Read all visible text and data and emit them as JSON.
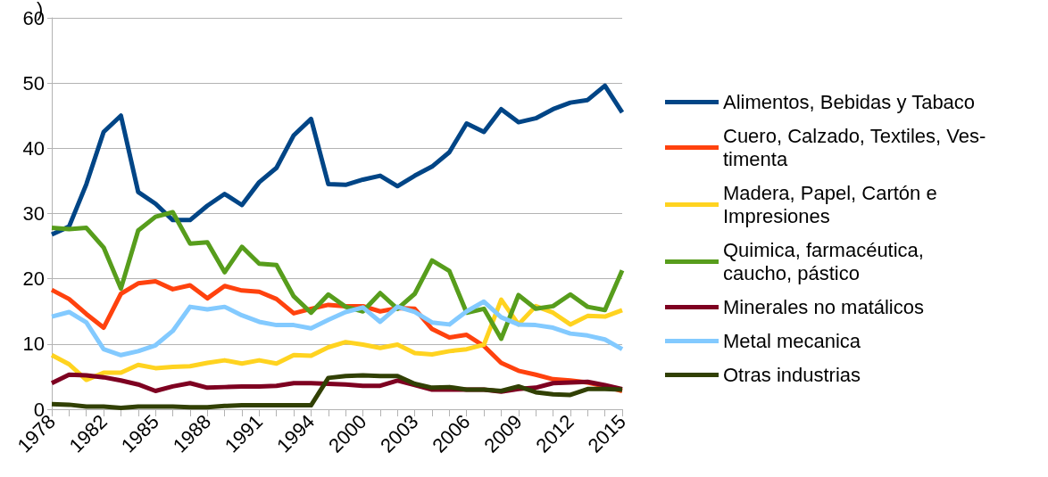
{
  "chart_data": {
    "type": "line",
    "title": ")",
    "categories": [
      "1978",
      null,
      null,
      "1982",
      null,
      null,
      "1985",
      null,
      null,
      "1988",
      null,
      null,
      "1991",
      null,
      null,
      "1994",
      null,
      null,
      "2000",
      null,
      null,
      "2003",
      null,
      null,
      "2006",
      null,
      null,
      "2009",
      null,
      null,
      "2012",
      null,
      null,
      "2015"
    ],
    "ylim": [
      0,
      60
    ],
    "yticks": [
      0,
      10,
      20,
      30,
      40,
      50,
      60
    ],
    "grid": "y",
    "legend": "right",
    "marker": "none",
    "line_style": "solid",
    "series": [
      {
        "name": "Alimentos, Bebidas y Tabaco",
        "color": "#004586",
        "values": [
          26.8,
          28,
          34.5,
          42.5,
          45,
          33.3,
          31.5,
          29,
          29,
          31.2,
          33,
          31.3,
          34.8,
          37,
          42,
          44.5,
          34.5,
          34.4,
          35.2,
          35.8,
          34.2,
          35.8,
          37.2,
          39.4,
          43.8,
          42.5,
          46,
          44,
          44.6,
          46,
          47,
          47.4,
          49.6,
          45.5
        ]
      },
      {
        "name": "Cuero, Calzado, Textiles, Ves-\ntimenta",
        "color": "#ff420e",
        "values": [
          18.3,
          16.9,
          14.6,
          12.5,
          17.7,
          19.3,
          19.6,
          18.4,
          19,
          17,
          18.9,
          18.2,
          18,
          16.9,
          14.7,
          15.4,
          16,
          15.8,
          15.8,
          15,
          15.5,
          15.4,
          12.3,
          11,
          11.4,
          9.7,
          7.1,
          5.9,
          5.3,
          4.6,
          4.4,
          4.1,
          3.5,
          2.8
        ]
      },
      {
        "name": "Madera, Papel, Cartón e\nImpresiones",
        "color": "#ffd320",
        "values": [
          8.3,
          6.9,
          4.5,
          5.6,
          5.6,
          6.8,
          6.3,
          6.5,
          6.6,
          7.1,
          7.5,
          7,
          7.5,
          7,
          8.3,
          8.2,
          9.5,
          10.3,
          9.9,
          9.4,
          9.9,
          8.6,
          8.4,
          8.9,
          9.2,
          9.9,
          16.8,
          13,
          15.8,
          14.8,
          13,
          14.3,
          14.2,
          15.2
        ]
      },
      {
        "name": "Quimica, farmacéutica,\ncaucho, pástico",
        "color": "#579d1c",
        "values": [
          27.8,
          27.6,
          27.8,
          24.8,
          18.5,
          27.4,
          29.5,
          30.2,
          25.4,
          25.6,
          21,
          24.9,
          22.3,
          22.1,
          17.3,
          14.8,
          17.6,
          15.7,
          15,
          17.8,
          15.4,
          17.7,
          22.8,
          21.2,
          14.8,
          15.4,
          10.8,
          17.5,
          15.4,
          15.8,
          17.6,
          15.7,
          15.2,
          21.3
        ]
      },
      {
        "name": "Minerales no matálicos",
        "color": "#7e0021",
        "values": [
          4,
          5.3,
          5.2,
          4.9,
          4.4,
          3.8,
          2.8,
          3.5,
          4,
          3.3,
          3.4,
          3.5,
          3.5,
          3.6,
          4,
          4,
          3.9,
          3.8,
          3.6,
          3.6,
          4.4,
          3.7,
          3,
          3,
          3,
          3,
          2.7,
          3.1,
          3.3,
          4,
          4.1,
          4.2,
          3.7,
          3.1
        ]
      },
      {
        "name": "Metal mecanica",
        "color": "#83caff",
        "values": [
          14.2,
          14.9,
          13.3,
          9.2,
          8.3,
          8.9,
          9.8,
          12,
          15.7,
          15.3,
          15.7,
          14.4,
          13.4,
          12.9,
          12.9,
          12.4,
          13.7,
          14.9,
          15.6,
          13.4,
          15.7,
          14.9,
          13.3,
          13,
          15,
          16.5,
          14.1,
          13,
          12.9,
          12.5,
          11.6,
          11.3,
          10.7,
          9.2
        ]
      },
      {
        "name": "Otras industrias",
        "color": "#314004",
        "values": [
          0.8,
          0.7,
          0.4,
          0.4,
          0.2,
          0.4,
          0.4,
          0.4,
          0.3,
          0.3,
          0.5,
          0.6,
          0.6,
          0.6,
          0.6,
          0.6,
          4.8,
          5.1,
          5.2,
          5.1,
          5.1,
          3.9,
          3.3,
          3.4,
          3,
          3,
          2.8,
          3.5,
          2.6,
          2.3,
          2.2,
          3.1,
          3.1,
          3
        ]
      }
    ]
  }
}
